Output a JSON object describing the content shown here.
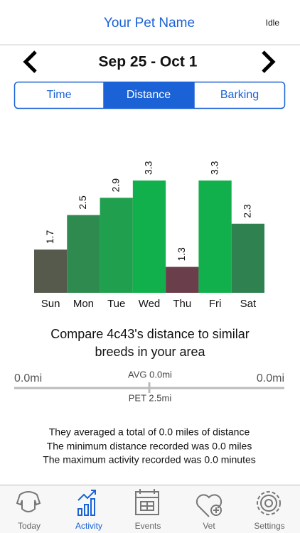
{
  "header": {
    "title": "Your Pet Name",
    "status": "Idle"
  },
  "date_range": "Sep 25 - Oct 1",
  "tabs": [
    "Time",
    "Distance",
    "Barking"
  ],
  "chart_data": {
    "type": "bar",
    "categories": [
      "Sun",
      "Mon",
      "Tue",
      "Wed",
      "Thu",
      "Fri",
      "Sat"
    ],
    "values": [
      1.7,
      2.5,
      2.9,
      3.3,
      1.3,
      3.3,
      2.3
    ],
    "colors": [
      "#555a4c",
      "#2f8a4f",
      "#20a04f",
      "#12b04d",
      "#6a3e4b",
      "#12b04d",
      "#2f8250"
    ],
    "ylim": [
      0.7,
      3.3
    ]
  },
  "compare": {
    "title": [
      "Compare 4c43's distance to similar",
      "breeds in your area"
    ],
    "min_label": "0.0mi",
    "max_label": "0.0mi",
    "avg_label": "AVG 0.0mi",
    "pet_label": "PET 2.5mi"
  },
  "stats": [
    "They averaged a total of 0.0 miles of distance",
    "The minimum distance recorded was 0.0 miles",
    "The maximum activity recorded was 0.0 minutes"
  ],
  "tab_bar": [
    "Today",
    "Activity",
    "Events",
    "Vet",
    "Settings"
  ]
}
